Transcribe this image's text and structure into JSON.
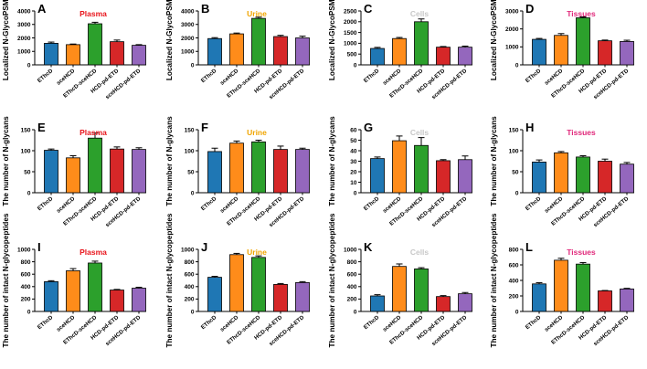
{
  "figure": {
    "categories": [
      "EThcD",
      "sceHCD",
      "EThcD-sceHCD",
      "HCD-pd-ETD",
      "sceHCD-pd-ETD"
    ],
    "bar_colors": [
      "#1f77b4",
      "#ff8c1a",
      "#2ca02c",
      "#d62728",
      "#9467bd"
    ],
    "title_colors": {
      "Plasma": "#e8141b",
      "Urine": "#f0a500",
      "Cells": "#c8c8c8",
      "Tissues": "#e0287a"
    }
  },
  "chart_data": [
    {
      "panel": "A",
      "title": "Plasma",
      "type": "bar",
      "ylabel": "Localized N-GlycoPSMs",
      "ylim": [
        0,
        4000
      ],
      "ticks": [
        0,
        1000,
        2000,
        3000,
        4000
      ],
      "categories": [
        "EThcD",
        "sceHCD",
        "EThcD-sceHCD",
        "HCD-pd-ETD",
        "sceHCD-pd-ETD"
      ],
      "values": [
        1600,
        1500,
        3050,
        1720,
        1450
      ],
      "errors": [
        90,
        45,
        110,
        120,
        50
      ]
    },
    {
      "panel": "B",
      "title": "Urine",
      "type": "bar",
      "ylabel": "Localized N-GlycoPSMs",
      "ylim": [
        0,
        4000
      ],
      "ticks": [
        0,
        1000,
        2000,
        3000,
        4000
      ],
      "categories": [
        "EThcD",
        "sceHCD",
        "EThcD-sceHCD",
        "HCD-pd-ETD",
        "sceHCD-pd-ETD"
      ],
      "values": [
        1950,
        2300,
        3450,
        2100,
        2000
      ],
      "errors": [
        70,
        60,
        90,
        90,
        130
      ]
    },
    {
      "panel": "C",
      "title": "Cells",
      "type": "bar",
      "ylabel": "Localized N-GlycoPSMs",
      "ylim": [
        0,
        2500
      ],
      "ticks": [
        0,
        500,
        1000,
        1500,
        2000,
        2500
      ],
      "categories": [
        "EThcD",
        "sceHCD",
        "EThcD-sceHCD",
        "HCD-pd-ETD",
        "sceHCD-pd-ETD"
      ],
      "values": [
        760,
        1220,
        2000,
        820,
        820
      ],
      "errors": [
        50,
        50,
        130,
        30,
        50
      ]
    },
    {
      "panel": "D",
      "title": "Tissues",
      "type": "bar",
      "ylabel": "Localized N-GlycoPSMs",
      "ylim": [
        0,
        3000
      ],
      "ticks": [
        0,
        1000,
        2000,
        3000
      ],
      "categories": [
        "EThcD",
        "sceHCD",
        "EThcD-sceHCD",
        "HCD-pd-ETD",
        "sceHCD-pd-ETD"
      ],
      "values": [
        1420,
        1640,
        2620,
        1340,
        1300
      ],
      "errors": [
        50,
        100,
        50,
        40,
        70
      ]
    },
    {
      "panel": "E",
      "title": "Plasma",
      "type": "bar",
      "ylabel": "The number of N-glycans",
      "ylim": [
        0,
        150
      ],
      "ticks": [
        0,
        50,
        100,
        150
      ],
      "categories": [
        "EThcD",
        "sceHCD",
        "EThcD-sceHCD",
        "HCD-pd-ETD",
        "sceHCD-pd-ETD"
      ],
      "values": [
        101,
        83,
        130,
        104,
        103
      ],
      "errors": [
        3,
        5,
        12,
        5,
        4
      ]
    },
    {
      "panel": "F",
      "title": "Urine",
      "type": "bar",
      "ylabel": "The number of N-glycans",
      "ylim": [
        0,
        150
      ],
      "ticks": [
        0,
        50,
        100,
        150
      ],
      "categories": [
        "EThcD",
        "sceHCD",
        "EThcD-sceHCD",
        "HCD-pd-ETD",
        "sceHCD-pd-ETD"
      ],
      "values": [
        98,
        118,
        121,
        103,
        103
      ],
      "errors": [
        8,
        5,
        4,
        8,
        3
      ]
    },
    {
      "panel": "G",
      "title": "Cells",
      "type": "bar",
      "ylabel": "The number of N-glycans",
      "ylim": [
        0,
        60
      ],
      "ticks": [
        0,
        10,
        20,
        30,
        40,
        50,
        60
      ],
      "categories": [
        "EThcD",
        "sceHCD",
        "EThcD-sceHCD",
        "HCD-pd-ETD",
        "sceHCD-pd-ETD"
      ],
      "values": [
        32.5,
        49.5,
        45,
        30.5,
        31.5
      ],
      "errors": [
        1.5,
        4.5,
        7.5,
        1,
        3.5
      ]
    },
    {
      "panel": "H",
      "title": "Tissues",
      "type": "bar",
      "ylabel": "The number of N-glycans",
      "ylim": [
        0,
        150
      ],
      "ticks": [
        0,
        50,
        100,
        150
      ],
      "categories": [
        "EThcD",
        "sceHCD",
        "EThcD-sceHCD",
        "HCD-pd-ETD",
        "sceHCD-pd-ETD"
      ],
      "values": [
        73,
        95,
        85,
        75,
        68
      ],
      "errors": [
        5,
        3,
        3,
        5,
        4
      ]
    },
    {
      "panel": "I",
      "title": "Plasma",
      "type": "bar",
      "ylabel": "The number of intact N-glycopeptides",
      "ylim": [
        0,
        1000
      ],
      "ticks": [
        0,
        200,
        400,
        600,
        800,
        1000
      ],
      "categories": [
        "EThcD",
        "sceHCD",
        "EThcD-sceHCD",
        "HCD-pd-ETD",
        "sceHCD-pd-ETD"
      ],
      "values": [
        480,
        655,
        780,
        345,
        375
      ],
      "errors": [
        15,
        35,
        30,
        10,
        15
      ]
    },
    {
      "panel": "J",
      "title": "Urine",
      "type": "bar",
      "ylabel": "The number of intact N-glycopeptides",
      "ylim": [
        0,
        1000
      ],
      "ticks": [
        0,
        200,
        400,
        600,
        800,
        1000
      ],
      "categories": [
        "EThcD",
        "sceHCD",
        "EThcD-sceHCD",
        "HCD-pd-ETD",
        "sceHCD-pd-ETD"
      ],
      "values": [
        550,
        915,
        870,
        435,
        465
      ],
      "errors": [
        15,
        20,
        25,
        15,
        15
      ]
    },
    {
      "panel": "K",
      "title": "Cells",
      "type": "bar",
      "ylabel": "The number of intact N-glycopeptides",
      "ylim": [
        0,
        1000
      ],
      "ticks": [
        0,
        200,
        400,
        600,
        800,
        1000
      ],
      "categories": [
        "EThcD",
        "sceHCD",
        "EThcD-sceHCD",
        "HCD-pd-ETD",
        "sceHCD-pd-ETD"
      ],
      "values": [
        250,
        725,
        685,
        240,
        285
      ],
      "errors": [
        20,
        40,
        20,
        15,
        20
      ]
    },
    {
      "panel": "L",
      "title": "Tissues",
      "type": "bar",
      "ylabel": "The number of intact N-glycopeptides",
      "ylim": [
        0,
        800
      ],
      "ticks": [
        0,
        200,
        400,
        600,
        800
      ],
      "categories": [
        "EThcD",
        "sceHCD",
        "EThcD-sceHCD",
        "HCD-pd-ETD",
        "sceHCD-pd-ETD"
      ],
      "values": [
        355,
        660,
        610,
        265,
        290
      ],
      "errors": [
        15,
        25,
        20,
        5,
        8
      ]
    }
  ]
}
